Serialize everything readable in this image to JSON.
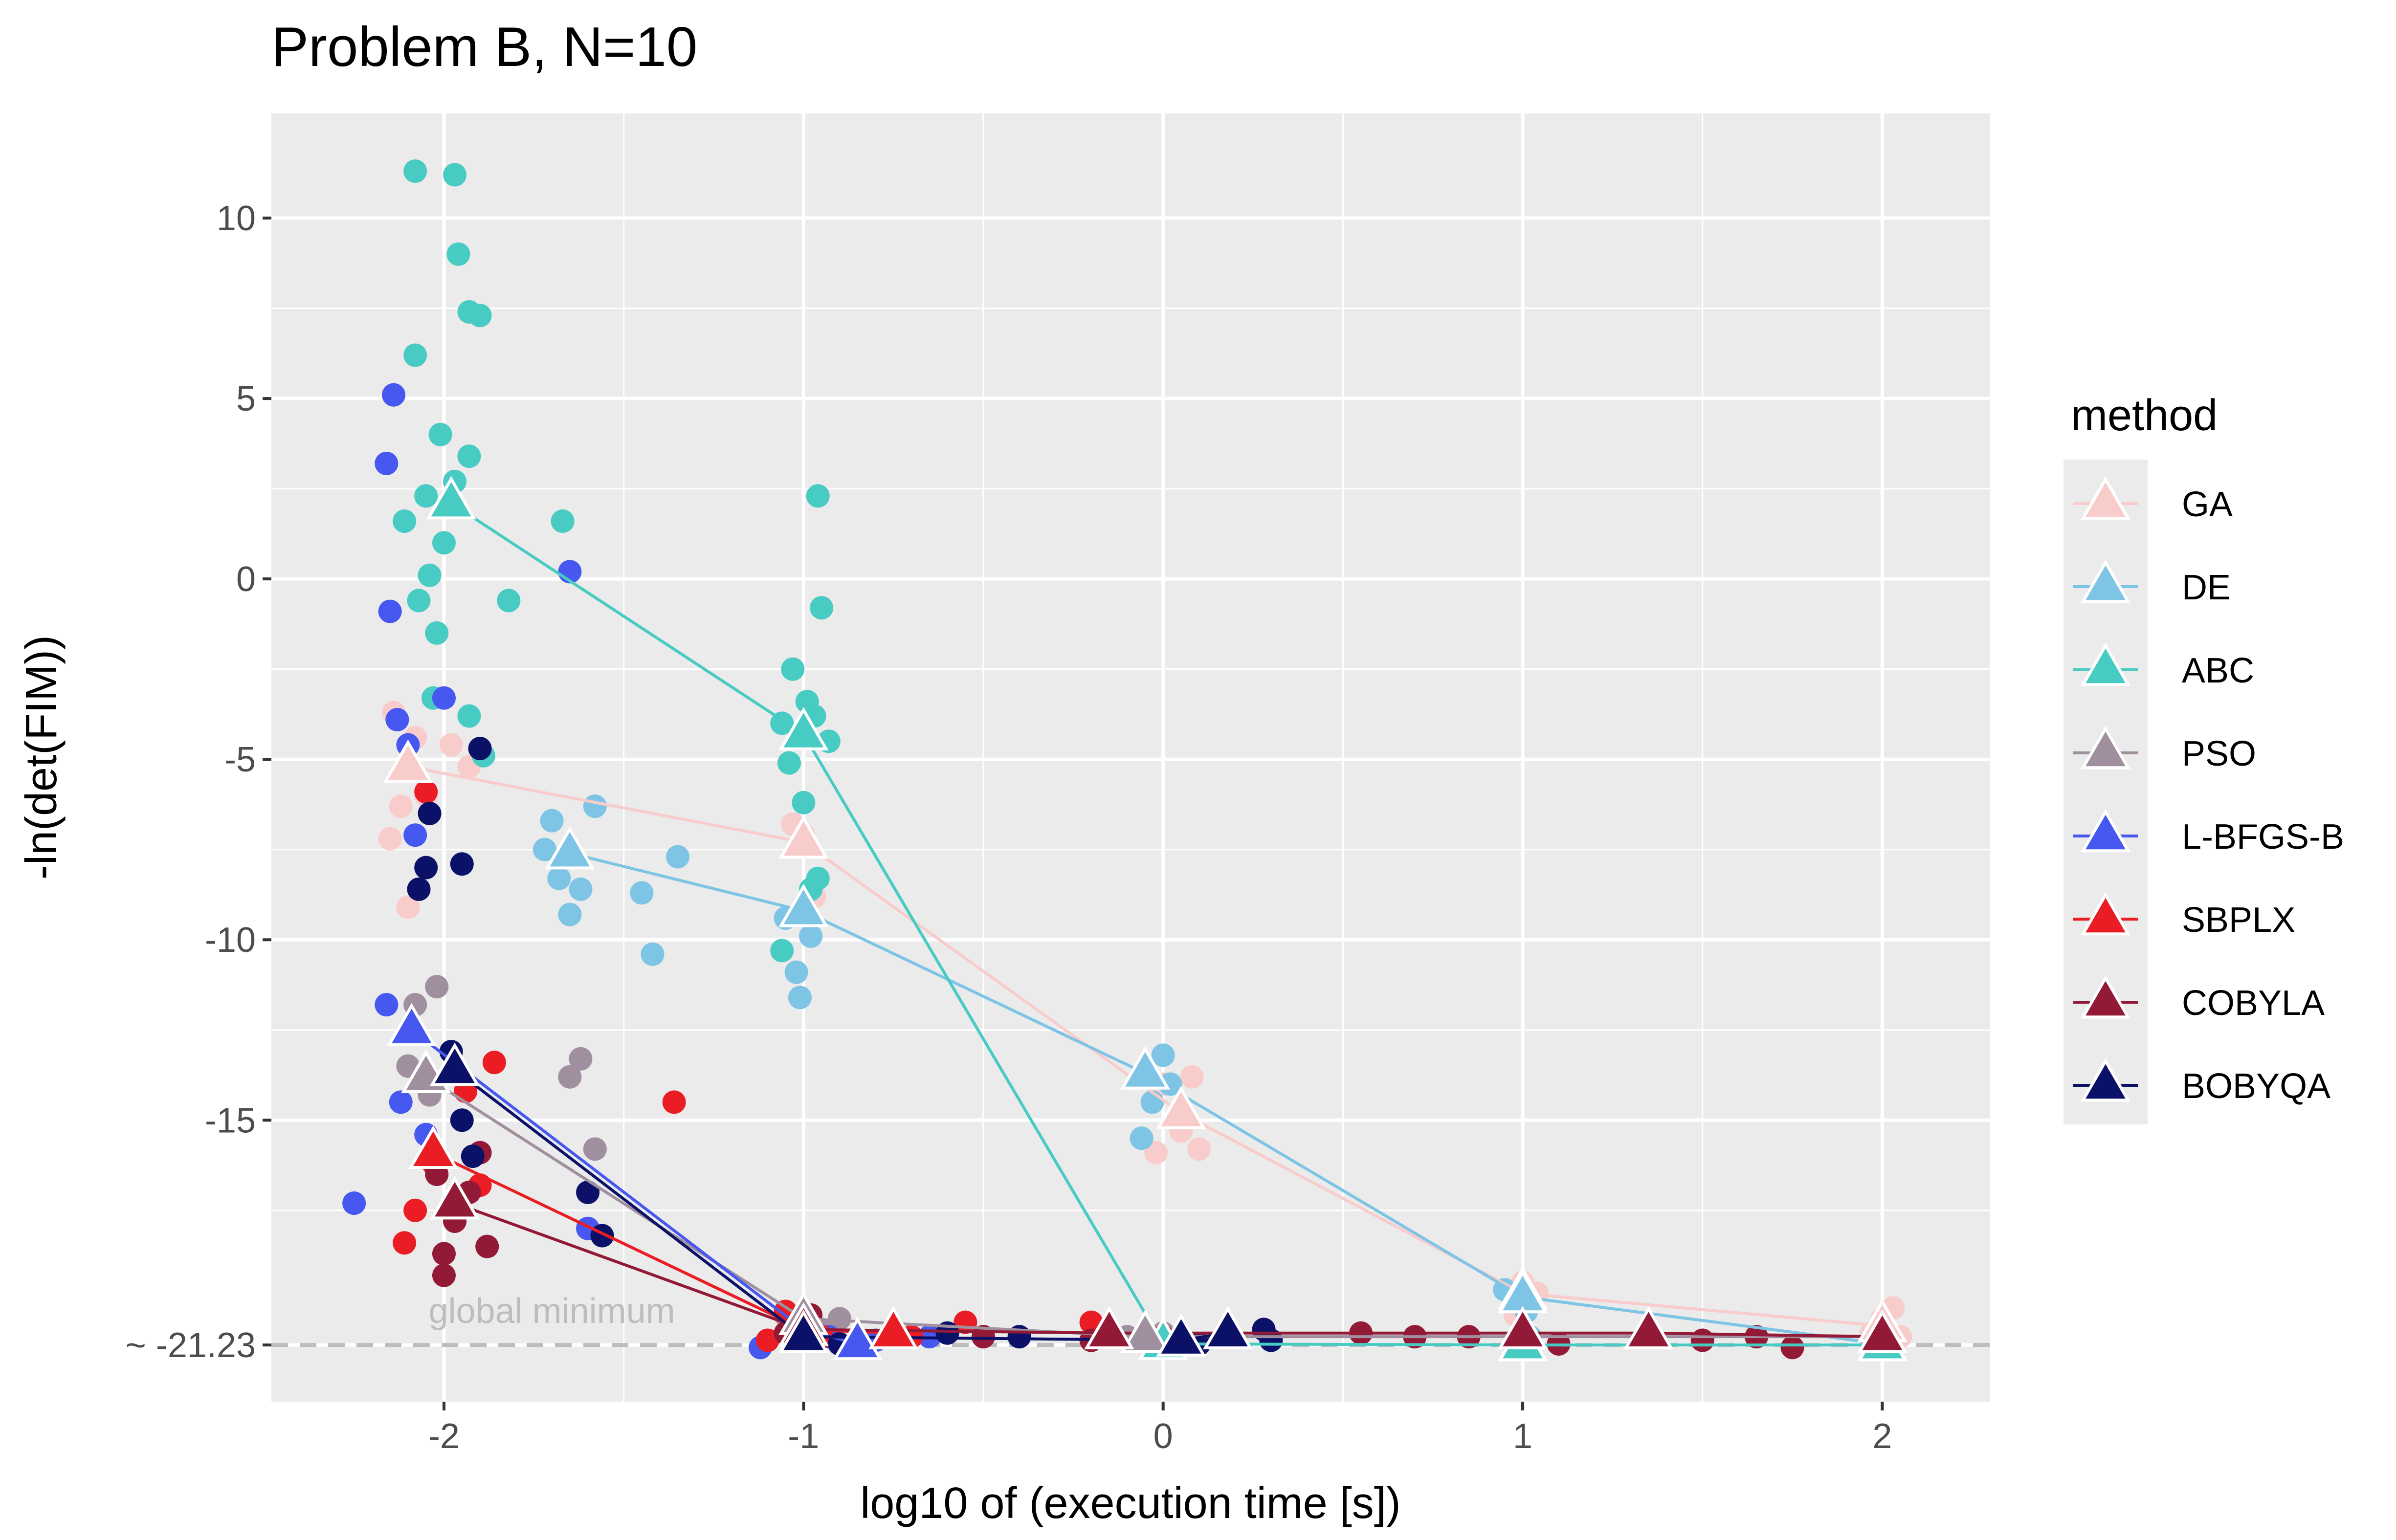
{
  "chart_data": {
    "type": "scatter",
    "title": "Problem B, N=10",
    "xlabel": "log10 of (execution time [s])",
    "ylabel": "-ln(det(FIM))",
    "xlim": [
      -2.48,
      2.3
    ],
    "ylim": [
      -22.8,
      12.9
    ],
    "x_ticks": [
      -2,
      -1,
      0,
      1,
      2
    ],
    "x_tick_labels": [
      "-2",
      "-1",
      "0",
      "1",
      "2"
    ],
    "y_ticks": [
      10,
      5,
      0,
      -5,
      -10,
      -15,
      -21.23
    ],
    "y_tick_labels": [
      "10",
      "5",
      "0",
      "-5",
      "-10",
      "-15",
      "~ -21.23"
    ],
    "grid": true,
    "legend_title": "method",
    "legend_position": "right",
    "reference_line": {
      "y": -21.23,
      "label": "global minimum",
      "color": "#bdbdbd",
      "style": "dashed"
    },
    "series": [
      {
        "name": "GA",
        "color": "#f9cccc",
        "mean_line": [
          [
            -2.1,
            -5.2
          ],
          [
            -1.0,
            -7.3
          ],
          [
            0.05,
            -14.8
          ],
          [
            1.0,
            -19.8
          ],
          [
            2.0,
            -20.7
          ]
        ],
        "points": [
          [
            -2.15,
            -7.2
          ],
          [
            -2.12,
            -6.3
          ],
          [
            -2.08,
            -4.4
          ],
          [
            -2.05,
            -6.0
          ],
          [
            -2.1,
            -9.1
          ],
          [
            -1.98,
            -4.6
          ],
          [
            -1.93,
            -5.2
          ],
          [
            -2.14,
            -3.7
          ],
          [
            -1.0,
            -7.1
          ],
          [
            -0.97,
            -8.8
          ],
          [
            -1.03,
            -6.8
          ],
          [
            0.05,
            -15.3
          ],
          [
            0.1,
            -15.8
          ],
          [
            0.0,
            -14.0
          ],
          [
            0.08,
            -13.8
          ],
          [
            -0.02,
            -15.9
          ],
          [
            1.0,
            -19.5
          ],
          [
            1.02,
            -20.0
          ],
          [
            0.98,
            -20.4
          ],
          [
            1.04,
            -19.8
          ],
          [
            2.0,
            -20.5
          ],
          [
            2.03,
            -20.2
          ],
          [
            1.97,
            -20.9
          ],
          [
            2.05,
            -21.0
          ]
        ]
      },
      {
        "name": "DE",
        "color": "#7ec4e4",
        "mean_line": [
          [
            -1.65,
            -7.6
          ],
          [
            -1.0,
            -9.2
          ],
          [
            -0.05,
            -13.7
          ],
          [
            1.0,
            -19.9
          ],
          [
            2.0,
            -21.2
          ]
        ],
        "points": [
          [
            -1.72,
            -7.5
          ],
          [
            -1.68,
            -8.3
          ],
          [
            -1.62,
            -8.6
          ],
          [
            -1.58,
            -6.3
          ],
          [
            -1.45,
            -8.7
          ],
          [
            -1.35,
            -7.7
          ],
          [
            -1.7,
            -6.7
          ],
          [
            -1.65,
            -9.3
          ],
          [
            -1.42,
            -10.4
          ],
          [
            -1.05,
            -9.4
          ],
          [
            -1.02,
            -10.9
          ],
          [
            -0.98,
            -9.9
          ],
          [
            -1.01,
            -11.6
          ],
          [
            -0.03,
            -14.5
          ],
          [
            0.0,
            -13.2
          ],
          [
            -0.06,
            -15.5
          ],
          [
            0.02,
            -14.0
          ],
          [
            0.95,
            -19.7
          ],
          [
            1.01,
            -20.3
          ],
          [
            1.02,
            -21.0
          ],
          [
            2.0,
            -21.1
          ],
          [
            2.02,
            -21.3
          ]
        ]
      },
      {
        "name": "ABC",
        "color": "#48cbc2",
        "mean_line": [
          [
            -1.98,
            2.1
          ],
          [
            -1.0,
            -4.3
          ],
          [
            0.0,
            -21.2
          ],
          [
            1.0,
            -21.23
          ],
          [
            2.0,
            -21.23
          ]
        ],
        "points": [
          [
            -2.08,
            11.3
          ],
          [
            -1.97,
            11.2
          ],
          [
            -1.96,
            9.0
          ],
          [
            -1.93,
            7.4
          ],
          [
            -1.9,
            7.3
          ],
          [
            -2.08,
            6.2
          ],
          [
            -2.01,
            4.0
          ],
          [
            -1.93,
            3.4
          ],
          [
            -1.97,
            2.7
          ],
          [
            -2.05,
            2.3
          ],
          [
            -2.11,
            1.6
          ],
          [
            -2.0,
            1.0
          ],
          [
            -2.04,
            0.1
          ],
          [
            -2.07,
            -0.6
          ],
          [
            -1.82,
            -0.6
          ],
          [
            -2.02,
            -1.5
          ],
          [
            -1.93,
            -3.8
          ],
          [
            -1.89,
            -4.9
          ],
          [
            -2.03,
            -3.3
          ],
          [
            -1.67,
            1.6
          ],
          [
            -1.03,
            -2.5
          ],
          [
            -0.99,
            -3.4
          ],
          [
            -1.06,
            -4.0
          ],
          [
            -0.97,
            -3.8
          ],
          [
            -1.04,
            -5.1
          ],
          [
            -1.0,
            -6.2
          ],
          [
            -0.93,
            -4.5
          ],
          [
            -0.95,
            -0.8
          ],
          [
            -0.96,
            2.3
          ],
          [
            -1.06,
            -10.3
          ],
          [
            -0.98,
            -8.6
          ],
          [
            -0.96,
            -8.3
          ],
          [
            0.0,
            -21.2
          ],
          [
            1.0,
            -21.23
          ],
          [
            2.0,
            -21.23
          ]
        ]
      },
      {
        "name": "PSO",
        "color": "#a0909f",
        "mean_line": [
          [
            -2.05,
            -13.8
          ],
          [
            -1.0,
            -20.5
          ],
          [
            -0.05,
            -21.0
          ],
          [
            2.0,
            -21.0
          ]
        ],
        "points": [
          [
            -2.08,
            -11.8
          ],
          [
            -2.02,
            -11.3
          ],
          [
            -2.1,
            -13.5
          ],
          [
            -1.62,
            -13.3
          ],
          [
            -1.65,
            -13.8
          ],
          [
            -1.58,
            -15.8
          ],
          [
            -2.04,
            -14.3
          ],
          [
            -1.05,
            -20.4
          ],
          [
            -0.95,
            -20.8
          ],
          [
            -0.9,
            -20.5
          ],
          [
            0.0,
            -20.9
          ],
          [
            -0.1,
            -21.0
          ],
          [
            1.99,
            -21.0
          ]
        ]
      },
      {
        "name": "L-BFGS-B",
        "color": "#4658ef",
        "mean_line": [
          [
            -2.09,
            -12.5
          ],
          [
            -1.0,
            -20.8
          ],
          [
            -0.85,
            -21.2
          ]
        ],
        "points": [
          [
            -2.14,
            5.1
          ],
          [
            -2.16,
            3.2
          ],
          [
            -1.65,
            0.2
          ],
          [
            -2.15,
            -0.9
          ],
          [
            -2.0,
            -3.3
          ],
          [
            -2.13,
            -3.9
          ],
          [
            -2.1,
            -4.6
          ],
          [
            -2.08,
            -7.1
          ],
          [
            -2.16,
            -11.8
          ],
          [
            -2.25,
            -17.3
          ],
          [
            -2.12,
            -14.5
          ],
          [
            -2.05,
            -15.4
          ],
          [
            -1.6,
            -18.0
          ],
          [
            -0.93,
            -21.0
          ],
          [
            -1.12,
            -21.3
          ],
          [
            -0.8,
            -21.1
          ],
          [
            -0.65,
            -21.0
          ]
        ]
      },
      {
        "name": "SBPLX",
        "color": "#ea1c24",
        "mean_line": [
          [
            -2.03,
            -15.9
          ],
          [
            -1.0,
            -20.8
          ],
          [
            -0.75,
            -20.9
          ]
        ],
        "points": [
          [
            -2.05,
            -5.9
          ],
          [
            -2.11,
            -18.4
          ],
          [
            -2.08,
            -17.5
          ],
          [
            -2.03,
            -16.2
          ],
          [
            -1.94,
            -14.2
          ],
          [
            -1.9,
            -16.8
          ],
          [
            -1.86,
            -13.4
          ],
          [
            -1.36,
            -14.5
          ],
          [
            -1.05,
            -20.3
          ],
          [
            -1.1,
            -21.1
          ],
          [
            -0.95,
            -21.0
          ],
          [
            -0.55,
            -20.6
          ],
          [
            -0.5,
            -21.0
          ],
          [
            -0.7,
            -21.0
          ],
          [
            -0.2,
            -20.6
          ],
          [
            0.0,
            -21.0
          ]
        ]
      },
      {
        "name": "COBYLA",
        "color": "#931a36",
        "mean_line": [
          [
            -1.97,
            -17.3
          ],
          [
            -1.0,
            -20.8
          ],
          [
            -0.15,
            -20.9
          ],
          [
            1.0,
            -20.9
          ],
          [
            1.35,
            -20.9
          ],
          [
            2.0,
            -21.0
          ]
        ],
        "points": [
          [
            -2.02,
            -16.5
          ],
          [
            -2.0,
            -18.7
          ],
          [
            -1.97,
            -17.8
          ],
          [
            -1.93,
            -17.0
          ],
          [
            -1.9,
            -15.9
          ],
          [
            -2.0,
            -19.3
          ],
          [
            -1.88,
            -18.5
          ],
          [
            -1.05,
            -20.9
          ],
          [
            -0.98,
            -20.4
          ],
          [
            -0.5,
            -21.0
          ],
          [
            -0.2,
            -21.1
          ],
          [
            0.55,
            -20.9
          ],
          [
            0.7,
            -21.0
          ],
          [
            0.85,
            -21.0
          ],
          [
            1.1,
            -21.2
          ],
          [
            1.35,
            -20.8
          ],
          [
            1.5,
            -21.1
          ],
          [
            1.65,
            -21.0
          ],
          [
            1.75,
            -21.3
          ]
        ]
      },
      {
        "name": "BOBYQA",
        "color": "#0c1168",
        "mean_line": [
          [
            -1.97,
            -13.6
          ],
          [
            -1.0,
            -21.0
          ],
          [
            0.05,
            -21.1
          ],
          [
            0.18,
            -20.9
          ]
        ],
        "points": [
          [
            -2.04,
            -6.5
          ],
          [
            -1.9,
            -4.7
          ],
          [
            -2.05,
            -8.0
          ],
          [
            -2.07,
            -8.6
          ],
          [
            -1.95,
            -7.9
          ],
          [
            -1.98,
            -13.1
          ],
          [
            -1.95,
            -15.0
          ],
          [
            -1.92,
            -16.0
          ],
          [
            -1.6,
            -17.0
          ],
          [
            -1.56,
            -18.2
          ],
          [
            -1.0,
            -20.4
          ],
          [
            -0.9,
            -21.2
          ],
          [
            -0.6,
            -20.9
          ],
          [
            -0.4,
            -21.0
          ],
          [
            0.1,
            -21.2
          ],
          [
            0.28,
            -20.8
          ],
          [
            0.3,
            -21.1
          ]
        ]
      }
    ]
  }
}
